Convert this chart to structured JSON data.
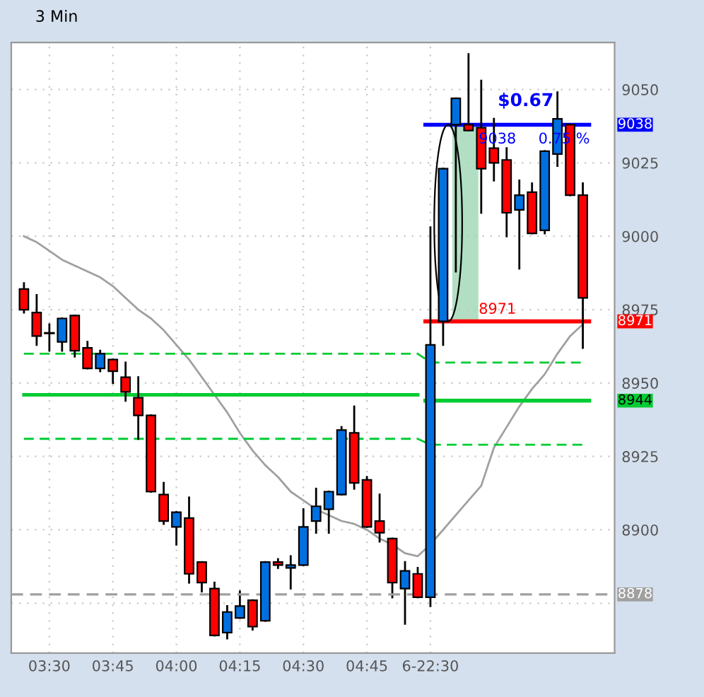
{
  "chart_data": {
    "type": "candlestick",
    "title": "3 Min",
    "categories": [
      null,
      null,
      "03:30",
      null,
      null,
      null,
      null,
      "03:45",
      null,
      null,
      null,
      null,
      "04:00",
      null,
      null,
      null,
      null,
      "04:15",
      null,
      null,
      null,
      null,
      "04:30",
      null,
      null,
      null,
      null,
      "04:45",
      null,
      null,
      null,
      null,
      "6-22:30",
      null,
      null,
      null,
      null,
      null,
      null,
      null,
      null,
      null,
      null,
      null,
      null
    ],
    "ohlc": [
      [
        8982,
        8984,
        8974,
        8975
      ],
      [
        8974,
        8980,
        8963,
        8966
      ],
      [
        8967,
        8970,
        8961,
        8967
      ],
      [
        8964,
        8972,
        8961,
        8972
      ],
      [
        8973,
        8973,
        8959,
        8961
      ],
      [
        8962,
        8964,
        8955,
        8955
      ],
      [
        8955,
        8961,
        8954,
        8960
      ],
      [
        8958,
        8958,
        8950,
        8954
      ],
      [
        8952,
        8957,
        8944,
        8947
      ],
      [
        8945,
        8952,
        8931,
        8939
      ],
      [
        8939,
        8939,
        8913,
        8913
      ],
      [
        8912,
        8916,
        8902,
        8903
      ],
      [
        8901,
        8906,
        8895,
        8906
      ],
      [
        8904,
        8911,
        8882,
        8885
      ],
      [
        8889,
        8889,
        8879,
        8882
      ],
      [
        8880,
        8882,
        8864,
        8864
      ],
      [
        8865,
        8874,
        8863,
        8872
      ],
      [
        8870,
        8879,
        8870,
        8874
      ],
      [
        8876,
        8876,
        8866,
        8867
      ],
      [
        8869,
        8889,
        8869,
        8889
      ],
      [
        8889,
        8890,
        8887,
        8888
      ],
      [
        8887,
        8891,
        8880,
        8888
      ],
      [
        8888,
        8907,
        8888,
        8901
      ],
      [
        8903,
        8914,
        8899,
        8908
      ],
      [
        8907,
        8913,
        8899,
        8913
      ],
      [
        8912,
        8935,
        8912,
        8934
      ],
      [
        8933,
        8942,
        8914,
        8916
      ],
      [
        8917,
        8918,
        8901,
        8901
      ],
      [
        8903,
        8912,
        8896,
        8899
      ],
      [
        8897,
        8897,
        8877,
        8882
      ],
      [
        8880,
        8889,
        8868,
        8886
      ],
      [
        8885,
        8887,
        8877,
        8877
      ],
      [
        8877,
        9003,
        8874,
        8963
      ],
      [
        8971,
        9023,
        8963,
        9023
      ],
      [
        9038,
        9047,
        8988,
        9047
      ],
      [
        9038,
        9062,
        9036,
        9036
      ],
      [
        9037,
        9053,
        9008,
        9023
      ],
      [
        9030,
        9040,
        9019,
        9025
      ],
      [
        9026,
        9030,
        9000,
        9008
      ],
      [
        9009,
        9019,
        8989,
        9014
      ],
      [
        9015,
        9018,
        9001,
        9001
      ],
      [
        9002,
        9029,
        9001,
        9029
      ],
      [
        9028,
        9049,
        9024,
        9040
      ],
      [
        9038,
        9038,
        9014,
        9014
      ],
      [
        9014,
        9018,
        8962,
        8979
      ]
    ],
    "colors": [
      "#ff0000",
      "#ff0000",
      "#000000",
      "#0070e0",
      "#ff0000",
      "#ff0000",
      "#0070e0",
      "#ff0000",
      "#ff0000",
      "#ff0000",
      "#ff0000",
      "#ff0000",
      "#0070e0",
      "#ff0000",
      "#ff0000",
      "#ff0000",
      "#0070e0",
      "#0070e0",
      "#ff0000",
      "#0070e0",
      "#ff0000",
      "#0070e0",
      "#0070e0",
      "#0070e0",
      "#0070e0",
      "#0070e0",
      "#ff0000",
      "#ff0000",
      "#ff0000",
      "#ff0000",
      "#0070e0",
      "#ff0000",
      "#0070e0",
      "#0070e0",
      "#0070e0",
      "#ff0000",
      "#ff0000",
      "#ff0000",
      "#ff0000",
      "#0070e0",
      "#ff0000",
      "#0070e0",
      "#0070e0",
      "#ff0000",
      "#ff0000"
    ],
    "series": [
      {
        "type": "line",
        "color": "#a0a0a0",
        "values": [
          9000,
          8998,
          8995,
          8992,
          8990,
          8988,
          8986,
          8983,
          8979,
          8975,
          8972,
          8968,
          8963,
          8958,
          8952,
          8946,
          8940,
          8933,
          8927,
          8922,
          8918,
          8913,
          8910,
          8907,
          8905,
          8903,
          8902,
          8900,
          8897,
          8895,
          8892,
          8891,
          8895,
          8900,
          8905,
          8910,
          8915,
          8928,
          8935,
          8942,
          8948,
          8953,
          8960,
          8966,
          8970
        ]
      },
      {
        "type": "line",
        "color": "#00cc33",
        "line_style": "dashed",
        "values": [
          8960,
          8960,
          8960,
          8960,
          8960,
          8960,
          8960,
          8960,
          8960,
          8960,
          8960,
          8960,
          8960,
          8960,
          8960,
          8960,
          8960,
          8960,
          8960,
          8960,
          8960,
          8960,
          8960,
          8960,
          8960,
          8960,
          8960,
          8960,
          8960,
          8960,
          8960,
          8960,
          8957,
          8957,
          8957,
          8957,
          8957,
          8957,
          8957,
          8957,
          8957,
          8957,
          8957,
          8957,
          8957
        ]
      },
      {
        "type": "line",
        "color": "#00cc33",
        "line_style": "solid",
        "values": [
          8946,
          8946,
          8946,
          8946,
          8946,
          8946,
          8946,
          8946,
          8946,
          8946,
          8946,
          8946,
          8946,
          8946,
          8946,
          8946,
          8946,
          8946,
          8946,
          8946,
          8946,
          8946,
          8946,
          8946,
          8946,
          8946,
          8946,
          8946,
          8946,
          8946,
          8946,
          8946,
          null,
          null,
          null,
          null,
          null,
          null,
          null,
          null,
          null,
          null,
          null,
          null,
          null
        ]
      },
      {
        "type": "line",
        "color": "#00cc33",
        "line_style": "dashed",
        "values": [
          8931,
          8931,
          8931,
          8931,
          8931,
          8931,
          8931,
          8931,
          8931,
          8931,
          8931,
          8931,
          8931,
          8931,
          8931,
          8931,
          8931,
          8931,
          8931,
          8931,
          8931,
          8931,
          8931,
          8931,
          8931,
          8931,
          8931,
          8931,
          8931,
          8931,
          8931,
          8931,
          8929,
          8929,
          8929,
          8929,
          8929,
          8929,
          8929,
          8929,
          8929,
          8929,
          8929,
          8929,
          8929
        ]
      }
    ],
    "ref_lines": [
      {
        "axis": "y",
        "value": 9038,
        "label": "9038",
        "color": "#0000ff",
        "line_style": "solid"
      },
      {
        "axis": "y",
        "value": 8971,
        "label": "8971",
        "color": "#ff0000",
        "line_style": "solid"
      },
      {
        "axis": "y",
        "value": 8944,
        "label": "8944",
        "color": "#00cc33",
        "line_style": "solid"
      },
      {
        "axis": "y",
        "value": 8878,
        "label": "8878",
        "color": "#a0a0a0",
        "line_style": "dashed"
      }
    ],
    "annotations": [
      {
        "text": "$0.67",
        "y": 9038
      },
      {
        "text": "0.75 %",
        "y": 9038
      },
      {
        "text": "9038",
        "y": 9038
      },
      {
        "text": "8971",
        "y": 8971
      }
    ],
    "ylim": [
      8858,
      9066
    ],
    "yticks": [
      9050,
      9025,
      9000,
      8975,
      8950,
      8925,
      8900,
      {
        "value": 8875,
        "label": null
      }
    ],
    "grid": true,
    "legend": false
  }
}
